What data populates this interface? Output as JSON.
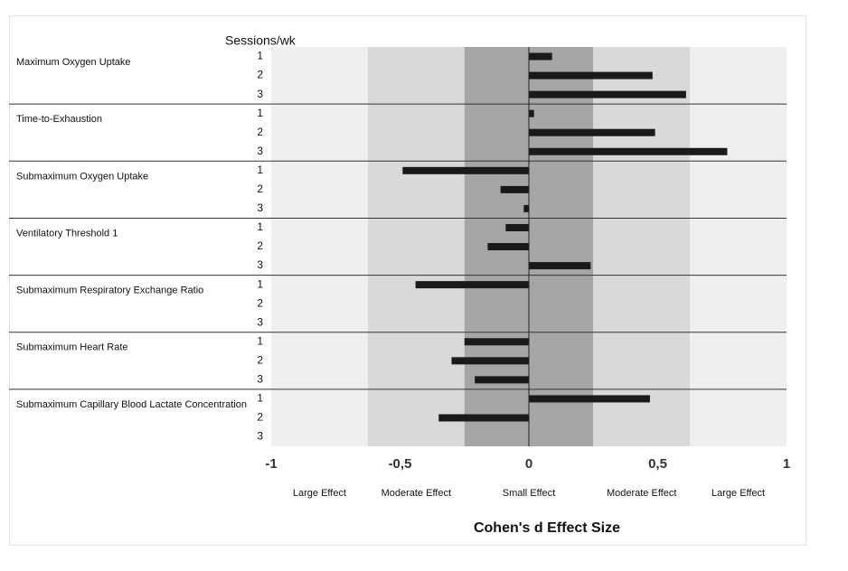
{
  "chart_data": {
    "type": "bar",
    "orientation": "horizontal",
    "title": "",
    "xlabel": "Cohen's d Effect Size",
    "row_header": "Sessions/wk",
    "xlim": [
      -1,
      1
    ],
    "x_ticks": [
      {
        "value": -1,
        "label": "-1"
      },
      {
        "value": -0.5,
        "label": "-0,5"
      },
      {
        "value": 0,
        "label": "0"
      },
      {
        "value": 0.5,
        "label": "0,5"
      },
      {
        "value": 1,
        "label": "1"
      }
    ],
    "effect_zones": [
      {
        "from": -1,
        "to": -0.625,
        "label": "Large Effect",
        "color": "#efefef"
      },
      {
        "from": -0.625,
        "to": -0.25,
        "label": "Moderate Effect",
        "color": "#d9d9d9"
      },
      {
        "from": -0.25,
        "to": 0.25,
        "label": "Small Effect",
        "color": "#a6a6a6"
      },
      {
        "from": 0.25,
        "to": 0.625,
        "label": "Moderate Effect",
        "color": "#d9d9d9"
      },
      {
        "from": 0.625,
        "to": 1,
        "label": "Large Effect",
        "color": "#efefef"
      }
    ],
    "groups": [
      {
        "name": "Maximum Oxygen Uptake",
        "bars": [
          {
            "session": "1",
            "value": 0.09
          },
          {
            "session": "2",
            "value": 0.48
          },
          {
            "session": "3",
            "value": 0.61
          }
        ]
      },
      {
        "name": "Time-to-Exhaustion",
        "bars": [
          {
            "session": "1",
            "value": 0.02
          },
          {
            "session": "2",
            "value": 0.49
          },
          {
            "session": "3",
            "value": 0.77
          }
        ]
      },
      {
        "name": "Submaximum Oxygen Uptake",
        "bars": [
          {
            "session": "1",
            "value": -0.49
          },
          {
            "session": "2",
            "value": -0.11
          },
          {
            "session": "3",
            "value": -0.02
          }
        ]
      },
      {
        "name": "Ventilatory Threshold 1",
        "bars": [
          {
            "session": "1",
            "value": -0.09
          },
          {
            "session": "2",
            "value": -0.16
          },
          {
            "session": "3",
            "value": 0.24
          }
        ]
      },
      {
        "name": "Submaximum Respiratory Exchange Ratio",
        "bars": [
          {
            "session": "1",
            "value": -0.44
          },
          {
            "session": "2",
            "value": 0
          },
          {
            "session": "3",
            "value": 0
          }
        ]
      },
      {
        "name": "Submaximum Heart Rate",
        "bars": [
          {
            "session": "1",
            "value": -0.25
          },
          {
            "session": "2",
            "value": -0.3
          },
          {
            "session": "3",
            "value": -0.21
          }
        ]
      },
      {
        "name": "Submaximum Capillary Blood Lactate Concentration",
        "bars": [
          {
            "session": "1",
            "value": 0.47
          },
          {
            "session": "2",
            "value": -0.35
          },
          {
            "session": "3",
            "value": 0
          }
        ]
      }
    ],
    "colors": {
      "bar": "#1a1a1a",
      "zero_line": "#222222",
      "separator": "#333333"
    }
  }
}
